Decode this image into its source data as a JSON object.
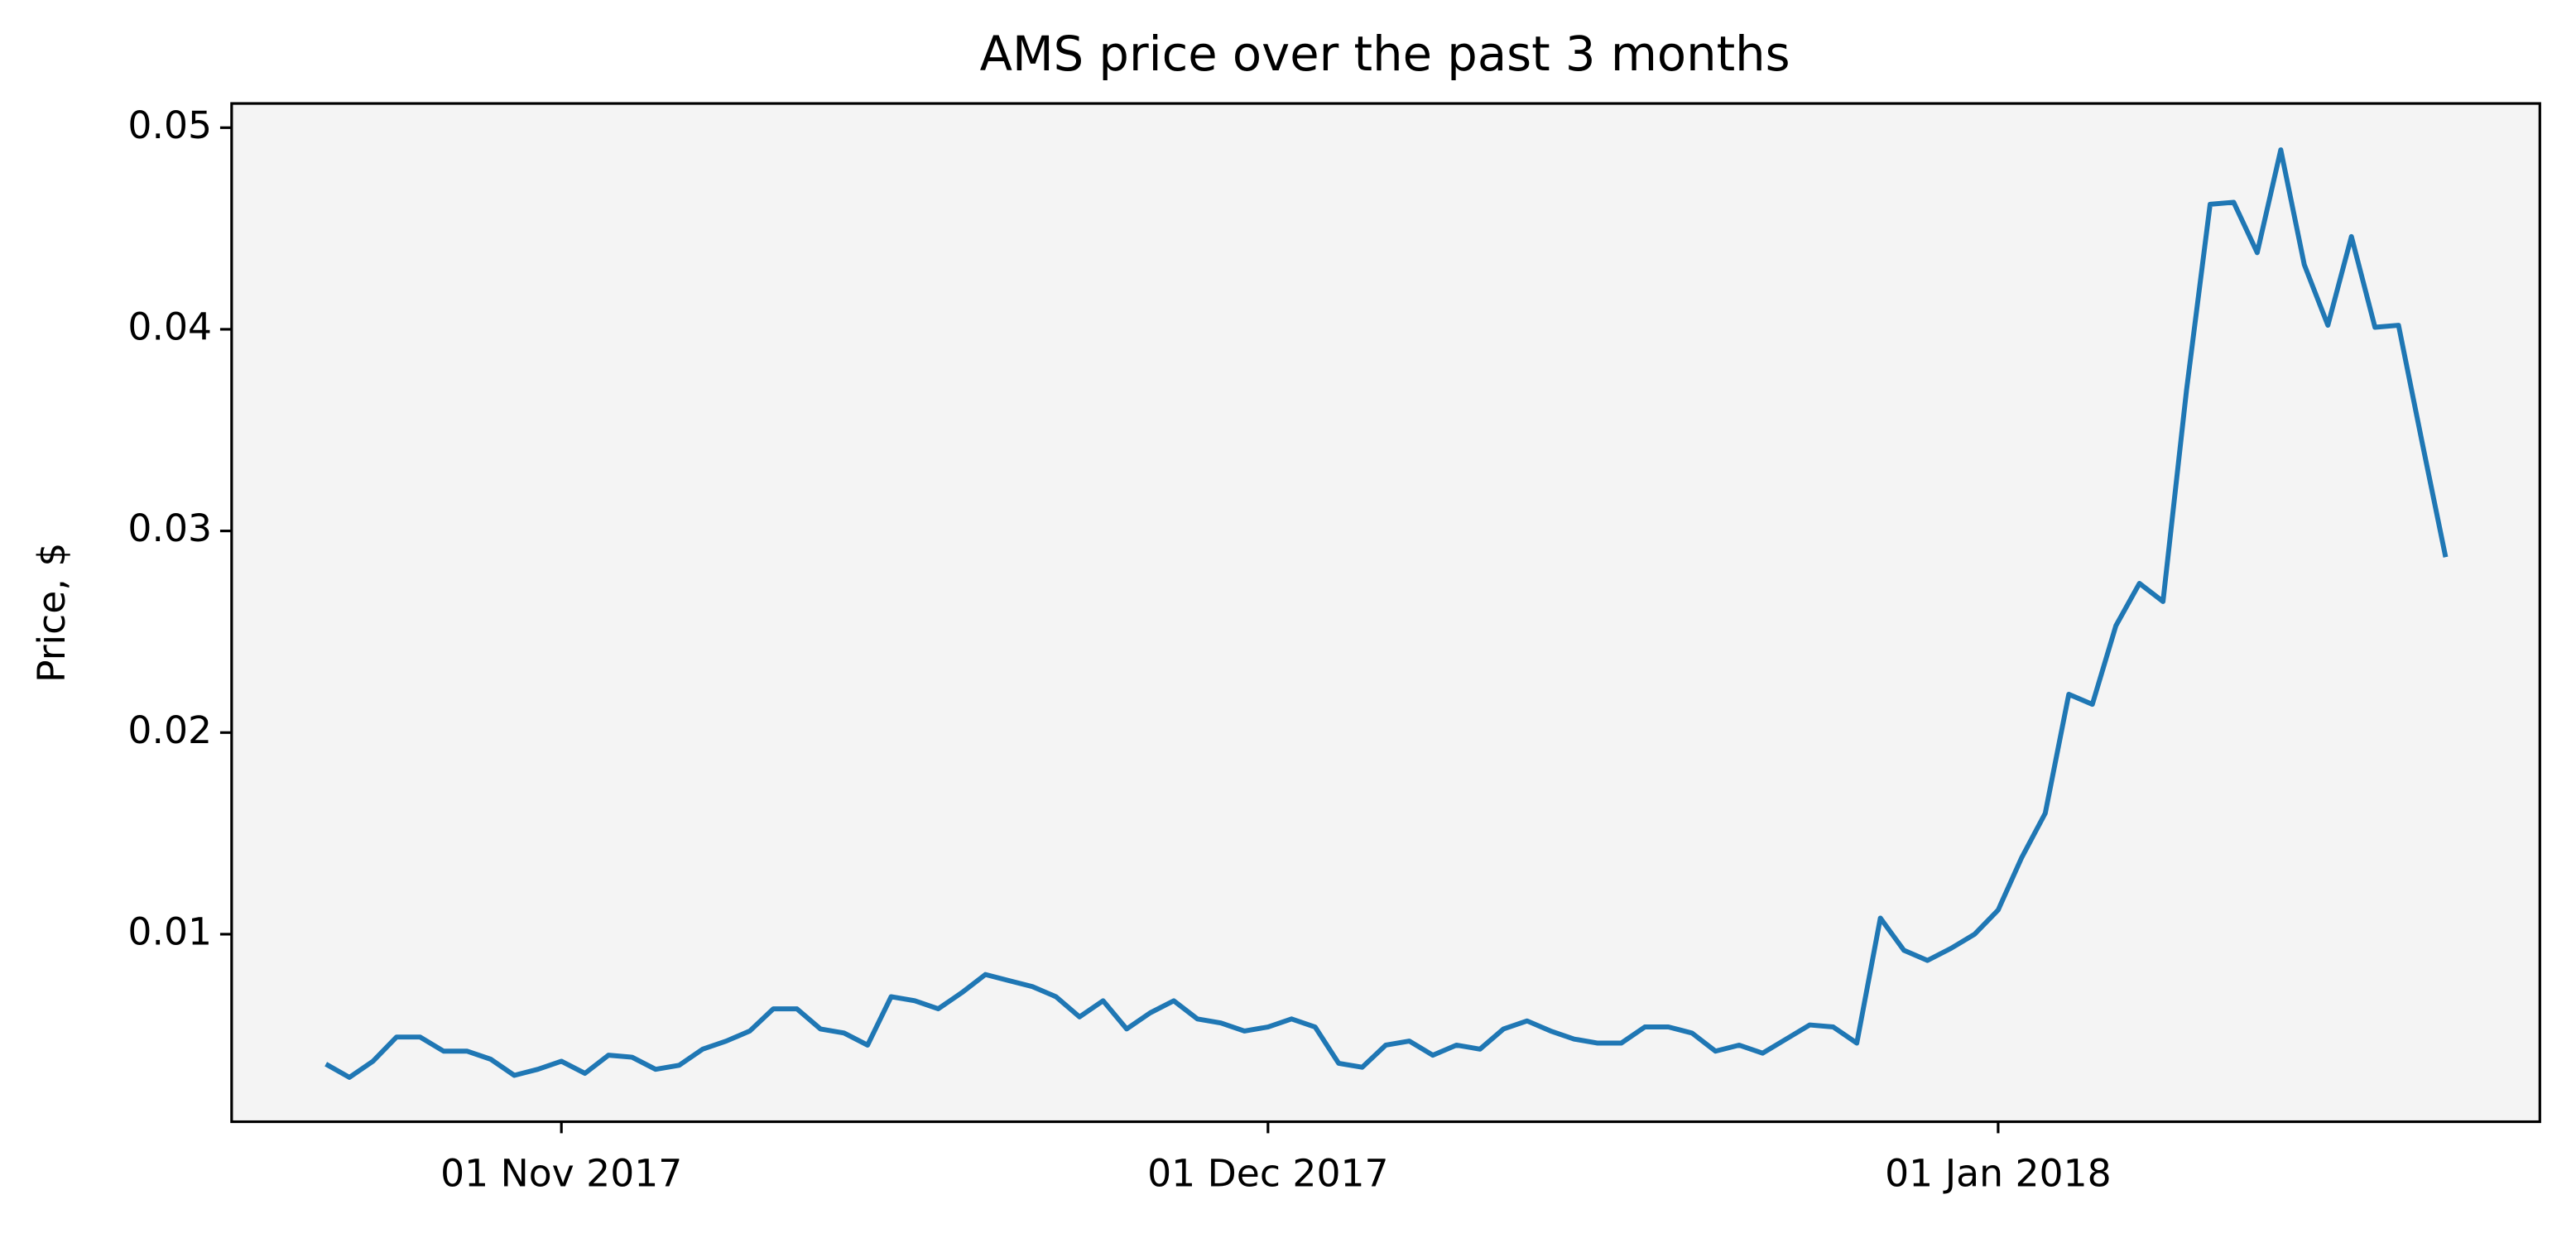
{
  "chart_data": {
    "type": "line",
    "title": "AMS price over the past 3 months",
    "y_label": "Price, $",
    "x": [
      "2017-10-22",
      "2017-10-23",
      "2017-10-24",
      "2017-10-25",
      "2017-10-26",
      "2017-10-27",
      "2017-10-28",
      "2017-10-29",
      "2017-10-30",
      "2017-10-31",
      "2017-11-01",
      "2017-11-02",
      "2017-11-03",
      "2017-11-04",
      "2017-11-05",
      "2017-11-06",
      "2017-11-07",
      "2017-11-08",
      "2017-11-09",
      "2017-11-10",
      "2017-11-11",
      "2017-11-12",
      "2017-11-13",
      "2017-11-14",
      "2017-11-15",
      "2017-11-16",
      "2017-11-17",
      "2017-11-18",
      "2017-11-19",
      "2017-11-20",
      "2017-11-21",
      "2017-11-22",
      "2017-11-23",
      "2017-11-24",
      "2017-11-25",
      "2017-11-26",
      "2017-11-27",
      "2017-11-28",
      "2017-11-29",
      "2017-11-30",
      "2017-12-01",
      "2017-12-02",
      "2017-12-03",
      "2017-12-04",
      "2017-12-05",
      "2017-12-06",
      "2017-12-07",
      "2017-12-08",
      "2017-12-09",
      "2017-12-10",
      "2017-12-11",
      "2017-12-12",
      "2017-12-13",
      "2017-12-14",
      "2017-12-15",
      "2017-12-16",
      "2017-12-17",
      "2017-12-18",
      "2017-12-19",
      "2017-12-20",
      "2017-12-21",
      "2017-12-22",
      "2017-12-23",
      "2017-12-24",
      "2017-12-25",
      "2017-12-26",
      "2017-12-27",
      "2017-12-28",
      "2017-12-29",
      "2017-12-30",
      "2017-12-31",
      "2018-01-01",
      "2018-01-02",
      "2018-01-03",
      "2018-01-04",
      "2018-01-05",
      "2018-01-06",
      "2018-01-07",
      "2018-01-08",
      "2018-01-09",
      "2018-01-10",
      "2018-01-11",
      "2018-01-12",
      "2018-01-13",
      "2018-01-14",
      "2018-01-15",
      "2018-01-16",
      "2018-01-17",
      "2018-01-18",
      "2018-01-19",
      "2018-01-20"
    ],
    "series": [
      {
        "name": "AMS",
        "color": "#1f77b4",
        "values": [
          0.00356,
          0.0029,
          0.0037,
          0.0049,
          0.0049,
          0.0042,
          0.0042,
          0.0038,
          0.003,
          0.0033,
          0.0037,
          0.0031,
          0.004,
          0.0039,
          0.0033,
          0.0035,
          0.0043,
          0.0047,
          0.0052,
          0.0063,
          0.0063,
          0.0053,
          0.0051,
          0.0045,
          0.0069,
          0.0067,
          0.0063,
          0.0071,
          0.008,
          0.0077,
          0.0074,
          0.0069,
          0.0059,
          0.0067,
          0.0053,
          0.0061,
          0.0067,
          0.0058,
          0.0056,
          0.0052,
          0.0054,
          0.0058,
          0.0054,
          0.0036,
          0.0034,
          0.0045,
          0.0047,
          0.004,
          0.0045,
          0.0043,
          0.0053,
          0.0057,
          0.0052,
          0.0048,
          0.0046,
          0.0046,
          0.0054,
          0.0054,
          0.0051,
          0.0042,
          0.0045,
          0.0041,
          0.0048,
          0.0055,
          0.0054,
          0.0046,
          0.0108,
          0.0092,
          0.0087,
          0.0093,
          0.01,
          0.0112,
          0.0138,
          0.016,
          0.0219,
          0.0214,
          0.0253,
          0.0274,
          0.0265,
          0.037,
          0.0462,
          0.0463,
          0.0438,
          0.0489,
          0.0432,
          0.0402,
          0.0446,
          0.0401,
          0.0402,
          0.0344,
          0.0287
        ]
      }
    ],
    "xlim": [
      "2017-10-18",
      "2018-01-24"
    ],
    "xticks": [
      {
        "value": "2017-11-01",
        "label": "01 Nov 2017"
      },
      {
        "value": "2017-12-01",
        "label": "01 Dec 2017"
      },
      {
        "value": "2018-01-01",
        "label": "01 Jan 2018"
      }
    ],
    "ylim": [
      0.0007,
      0.0512
    ],
    "yticks": [
      0.01,
      0.02,
      0.03,
      0.04,
      0.05
    ],
    "plot_background": "#f4f4f4"
  }
}
